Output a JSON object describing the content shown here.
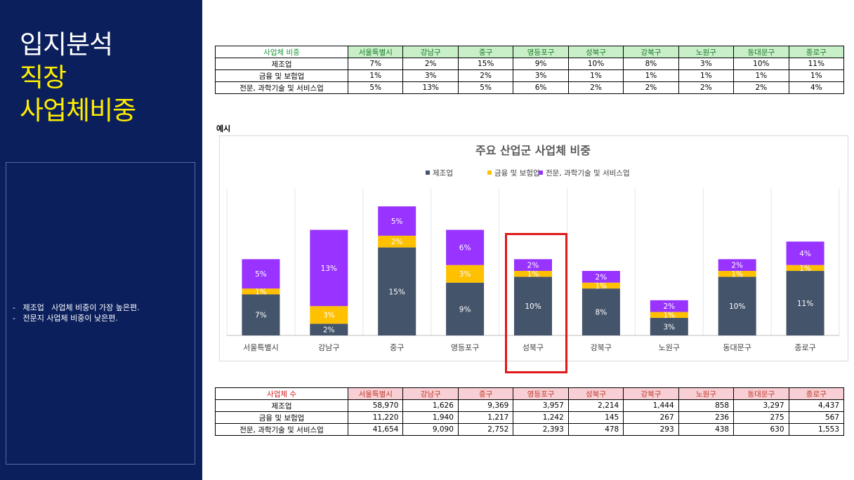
{
  "title": {
    "line1": "입지분석",
    "line2": "직장",
    "line3": "사업체비중"
  },
  "notes": [
    "-   제조업   사업체 비중이 가장 높은편.",
    "-   전문지 사업체 비중이 낮은편."
  ],
  "top_table": {
    "header": [
      "사업체 비중",
      "서울특별시",
      "강남구",
      "중구",
      "영등포구",
      "성북구",
      "강북구",
      "노원구",
      "동대문구",
      "종로구"
    ],
    "rows": [
      [
        "제조업",
        "7%",
        "2%",
        "15%",
        "9%",
        "10%",
        "8%",
        "3%",
        "10%",
        "11%"
      ],
      [
        "금융 및 보험업",
        "1%",
        "3%",
        "2%",
        "3%",
        "1%",
        "1%",
        "1%",
        "1%",
        "1%"
      ],
      [
        "전문, 과학기술 및 서비스업",
        "5%",
        "13%",
        "5%",
        "6%",
        "2%",
        "2%",
        "2%",
        "2%",
        "4%"
      ]
    ]
  },
  "example_label": "예시",
  "bottom_table": {
    "header": [
      "사업체 수",
      "서울특별시",
      "강남구",
      "중구",
      "영등포구",
      "성북구",
      "강북구",
      "노원구",
      "동대문구",
      "종로구"
    ],
    "rows": [
      [
        "제조업",
        "58,970",
        "1,626",
        "9,369",
        "3,957",
        "2,214",
        "1,444",
        "858",
        "3,297",
        "4,437"
      ],
      [
        "금융 및 보험업",
        "11,220",
        "1,940",
        "1,217",
        "1,242",
        "145",
        "267",
        "236",
        "275",
        "567"
      ],
      [
        "전문, 과학기술 및 서비스업",
        "41,654",
        "9,090",
        "2,752",
        "2,393",
        "478",
        "293",
        "438",
        "630",
        "1,553"
      ]
    ]
  },
  "chart_data": {
    "type": "bar",
    "stacked": true,
    "title": "주요 산업군 사업체 비중",
    "categories": [
      "서울특별시",
      "강남구",
      "중구",
      "영등포구",
      "성북구",
      "강북구",
      "노원구",
      "동대문구",
      "종로구"
    ],
    "series": [
      {
        "name": "제조업",
        "color": "#44546a",
        "values": [
          7,
          2,
          15,
          9,
          10,
          8,
          3,
          10,
          11
        ],
        "labels": [
          "7%",
          "2%",
          "15%",
          "9%",
          "10%",
          "8%",
          "3%",
          "10%",
          "11%"
        ]
      },
      {
        "name": "금융 및 보험업",
        "color": "#ffc000",
        "values": [
          1,
          3,
          2,
          3,
          1,
          1,
          1,
          1,
          1
        ],
        "labels": [
          "1%",
          "3%",
          "2%",
          "3%",
          "1%",
          "1%",
          "1%",
          "1%",
          "1%"
        ]
      },
      {
        "name": "전문, 과학기술 및 서비스업",
        "color": "#9933ff",
        "values": [
          5,
          13,
          5,
          6,
          2,
          2,
          2,
          2,
          4
        ],
        "labels": [
          "5%",
          "13%",
          "5%",
          "6%",
          "2%",
          "2%",
          "2%",
          "2%",
          "4%"
        ]
      }
    ],
    "legend": "top",
    "grid": "vertical-category-separators",
    "highlight_category": "성북구"
  }
}
